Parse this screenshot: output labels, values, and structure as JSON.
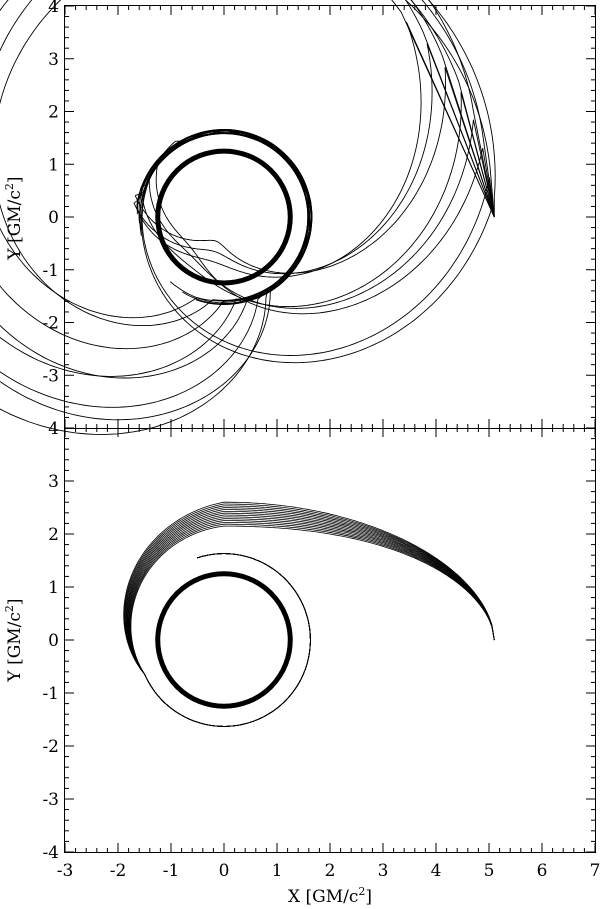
{
  "chart_data": [
    {
      "type": "line",
      "panel": "top",
      "xlabel": "",
      "ylabel_parts": {
        "before": "Y [GM/c",
        "sup": "2",
        "after": "]"
      },
      "xlim": [
        -3,
        7
      ],
      "ylim": [
        -4,
        4
      ],
      "xticks": [
        "-3",
        "-2",
        "-1",
        "0",
        "1",
        "2",
        "3",
        "4",
        "5",
        "6",
        "7"
      ],
      "yticks": [
        "-3",
        "-2",
        "-1",
        "0",
        "1",
        "2",
        "3",
        "4"
      ],
      "source_point": [
        5.1,
        0.0
      ],
      "circles": [
        {
          "name": "inner",
          "center": [
            0,
            0
          ],
          "r": 1.25,
          "stroke": "#000000"
        }
      ],
      "ray_bundle": {
        "count": 16,
        "description_note": "photon trajectories fanning from source at (5.1, 0) and winding around the central object"
      }
    },
    {
      "type": "line",
      "panel": "bottom",
      "xlabel_parts": {
        "before": "X [GM/c",
        "sup": "2",
        "after": "]"
      },
      "ylabel_parts": {
        "before": "Y [GM/c",
        "sup": "2",
        "after": "]"
      },
      "xlim": [
        -3,
        7
      ],
      "ylim": [
        -4,
        4
      ],
      "xticks": [
        "-3",
        "-2",
        "-1",
        "0",
        "1",
        "2",
        "3",
        "4",
        "5",
        "6",
        "7"
      ],
      "yticks": [
        "-4",
        "-3",
        "-2",
        "-1",
        "0",
        "1",
        "2",
        "3",
        "4"
      ],
      "source_point": [
        5.1,
        0.0
      ],
      "circles": [
        {
          "name": "inner",
          "center": [
            0,
            0
          ],
          "r": 1.25,
          "stroke": "#000000"
        }
      ],
      "ray_bundle": {
        "count": 14
      }
    }
  ]
}
